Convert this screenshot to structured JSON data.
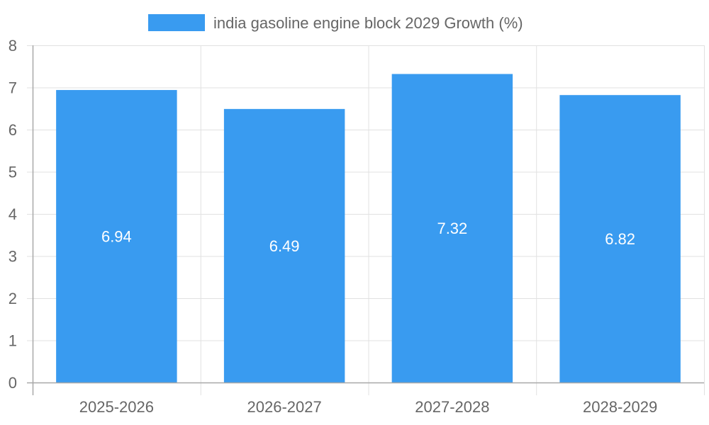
{
  "chart_data": {
    "type": "bar",
    "title": "",
    "xlabel": "",
    "ylabel": "",
    "categories": [
      "2025-2026",
      "2026-2027",
      "2027-2028",
      "2028-2029"
    ],
    "series": [
      {
        "name": "india gasoline engine block 2029 Growth (%)",
        "values": [
          6.94,
          6.49,
          7.32,
          6.82
        ],
        "color": "#399bf0"
      }
    ],
    "data_labels": [
      "6.94",
      "6.49",
      "7.32",
      "6.82"
    ],
    "ylim": [
      0,
      8
    ],
    "yticks": [
      "0",
      "1",
      "2",
      "3",
      "4",
      "5",
      "6",
      "7",
      "8"
    ],
    "grid": true,
    "legend": {
      "position": "top-center",
      "label": "india gasoline engine block 2029 Growth (%)"
    },
    "colors": {
      "bar": "#399bf0",
      "grid": "#e1e1e1",
      "axis": "#a8a8a8",
      "text": "#666666",
      "data_label": "#ffffff"
    }
  }
}
